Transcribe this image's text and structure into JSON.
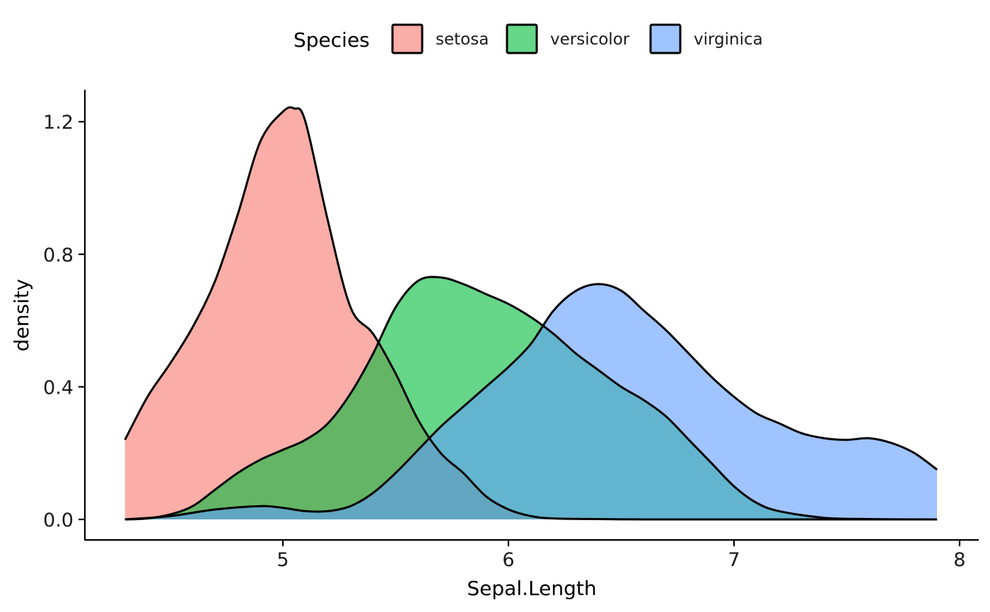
{
  "chart_data": {
    "type": "area",
    "subtype": "density",
    "xlabel": "Sepal.Length",
    "ylabel": "density",
    "xlim": [
      4.3,
      7.9
    ],
    "ylim": [
      0.0,
      1.24
    ],
    "x_ticks": [
      5,
      6,
      7,
      8
    ],
    "y_ticks": [
      0.0,
      0.4,
      0.8,
      1.2
    ],
    "grid": false,
    "legend": {
      "title": "Species",
      "position": "top",
      "entries": [
        "setosa",
        "versicolor",
        "virginica"
      ]
    },
    "series": [
      {
        "name": "setosa",
        "color": "#F8766D",
        "x": [
          4.3,
          4.4,
          4.5,
          4.6,
          4.7,
          4.8,
          4.9,
          5.0,
          5.05,
          5.1,
          5.2,
          5.3,
          5.4,
          5.5,
          5.6,
          5.7,
          5.8,
          5.9,
          6.0,
          6.1,
          6.2,
          6.4,
          6.6,
          6.8,
          7.0,
          7.2,
          7.4,
          7.6,
          7.9
        ],
        "y": [
          0.24,
          0.37,
          0.47,
          0.58,
          0.72,
          0.92,
          1.14,
          1.23,
          1.24,
          1.2,
          0.9,
          0.64,
          0.56,
          0.44,
          0.3,
          0.2,
          0.14,
          0.07,
          0.03,
          0.01,
          0.003,
          0.001,
          0.0,
          0.0,
          0.0,
          0.0,
          0.0,
          0.0,
          0.0
        ]
      },
      {
        "name": "versicolor",
        "color": "#00BA38",
        "x": [
          4.3,
          4.4,
          4.5,
          4.6,
          4.7,
          4.8,
          4.9,
          5.0,
          5.1,
          5.2,
          5.3,
          5.4,
          5.5,
          5.6,
          5.7,
          5.8,
          5.9,
          6.0,
          6.1,
          6.2,
          6.3,
          6.4,
          6.5,
          6.6,
          6.7,
          6.8,
          6.9,
          7.0,
          7.1,
          7.2,
          7.4,
          7.6,
          7.9
        ],
        "y": [
          0.0,
          0.003,
          0.015,
          0.04,
          0.09,
          0.14,
          0.18,
          0.21,
          0.24,
          0.29,
          0.38,
          0.5,
          0.64,
          0.72,
          0.73,
          0.71,
          0.68,
          0.65,
          0.61,
          0.56,
          0.5,
          0.45,
          0.4,
          0.36,
          0.31,
          0.24,
          0.17,
          0.1,
          0.05,
          0.025,
          0.005,
          0.001,
          0.0
        ]
      },
      {
        "name": "virginica",
        "color": "#619CFF",
        "x": [
          4.3,
          4.5,
          4.7,
          4.9,
          5.0,
          5.1,
          5.2,
          5.3,
          5.4,
          5.5,
          5.6,
          5.7,
          5.8,
          5.9,
          6.0,
          6.1,
          6.2,
          6.3,
          6.4,
          6.5,
          6.6,
          6.7,
          6.8,
          6.9,
          7.0,
          7.1,
          7.2,
          7.3,
          7.4,
          7.5,
          7.6,
          7.7,
          7.8,
          7.9
        ],
        "y": [
          0.0,
          0.01,
          0.03,
          0.04,
          0.035,
          0.025,
          0.025,
          0.04,
          0.08,
          0.14,
          0.21,
          0.28,
          0.34,
          0.4,
          0.46,
          0.53,
          0.63,
          0.69,
          0.71,
          0.69,
          0.63,
          0.57,
          0.5,
          0.43,
          0.37,
          0.32,
          0.29,
          0.26,
          0.245,
          0.24,
          0.245,
          0.23,
          0.2,
          0.15
        ]
      }
    ]
  }
}
